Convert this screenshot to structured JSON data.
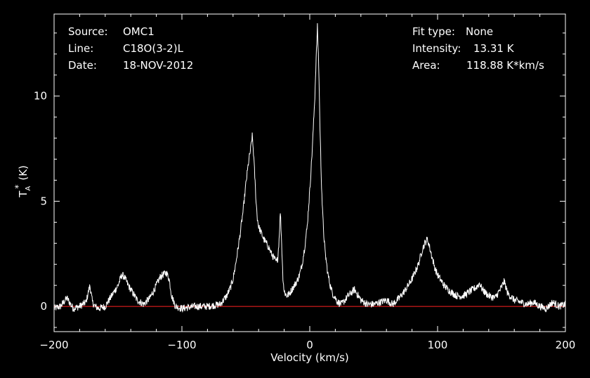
{
  "header": {
    "source_label": "Source:",
    "source_value": "OMC1",
    "line_label": "Line:",
    "line_value": "C18O(3-2)L",
    "date_label": "Date:",
    "date_value": "18-NOV-2012",
    "fit_label": "Fit type:",
    "fit_value": "None",
    "intensity_label": "Intensity:",
    "intensity_value": "13.31 K",
    "area_label": "Area:",
    "area_value": "118.88 K*km/s"
  },
  "chart_data": {
    "type": "line",
    "xlabel": "Velocity (km/s)",
    "ylabel_main": "T",
    "ylabel_sub": "A",
    "ylabel_sup": "*",
    "ylabel_unit": "(K)",
    "xlim": [
      -200,
      200
    ],
    "ylim": [
      -1.2,
      13.9
    ],
    "x_ticks": [
      -200,
      -100,
      0,
      100,
      200
    ],
    "x_tick_labels": [
      "−200",
      "−100",
      "0",
      "100",
      "200"
    ],
    "y_ticks": [
      0,
      5,
      10
    ],
    "y_tick_labels": [
      "0",
      "5",
      "10"
    ],
    "baseline": 0,
    "series": [
      {
        "color": "#ffffff",
        "x": [
          -200,
          -195,
          -190,
          -185,
          -180,
          -175,
          -172,
          -170,
          -168,
          -165,
          -160,
          -155,
          -150,
          -147,
          -145,
          -142,
          -138,
          -135,
          -130,
          -125,
          -120,
          -117,
          -115,
          -112,
          -110,
          -108,
          -105,
          -100,
          -90,
          -80,
          -70,
          -65,
          -62,
          -60,
          -58,
          -55,
          -52,
          -50,
          -48,
          -46,
          -45,
          -44,
          -43,
          -42,
          -41,
          -40,
          -38,
          -36,
          -34,
          -32,
          -30,
          -28,
          -26,
          -25,
          -24,
          -23,
          -22,
          -21,
          -20,
          -18,
          -16,
          -14,
          -12,
          -10,
          -8,
          -6,
          -4,
          -2,
          0,
          2,
          4,
          5,
          6,
          7,
          8,
          9,
          10,
          11,
          12,
          14,
          16,
          18,
          20,
          22,
          25,
          30,
          35,
          40,
          45,
          50,
          55,
          60,
          65,
          70,
          75,
          80,
          85,
          88,
          90,
          92,
          93,
          95,
          98,
          100,
          105,
          110,
          115,
          120,
          125,
          130,
          133,
          135,
          140,
          145,
          150,
          152,
          155,
          160,
          165,
          170,
          175,
          180,
          185,
          190,
          195,
          200
        ],
        "y": [
          -0.1,
          0,
          0.4,
          -0.1,
          0,
          0.2,
          1,
          0.2,
          0,
          -0.1,
          0,
          0.5,
          1,
          1.5,
          1.4,
          1,
          0.6,
          0.3,
          0.1,
          0.4,
          1,
          1.4,
          1.5,
          1.6,
          1.3,
          0.5,
          0,
          -0.1,
          0,
          0,
          0.1,
          0.5,
          0.9,
          1.3,
          2,
          3.2,
          4.6,
          5.8,
          6.8,
          7.6,
          8.1,
          7.3,
          6.2,
          5,
          4.2,
          3.8,
          3.5,
          3.2,
          3,
          2.8,
          2.5,
          2.3,
          2.1,
          2.3,
          3.2,
          4.5,
          3,
          1.4,
          0.7,
          0.5,
          0.6,
          0.8,
          1,
          1.2,
          1.5,
          2,
          2.8,
          3.8,
          5.5,
          7.5,
          10,
          11.8,
          13.3,
          11.5,
          8.5,
          6.2,
          4.5,
          3.4,
          2.6,
          1.6,
          1,
          0.6,
          0.4,
          0.2,
          0.1,
          0.5,
          0.8,
          0.3,
          0.1,
          0.1,
          0.2,
          0.3,
          0.1,
          0.4,
          0.8,
          1.3,
          2,
          2.7,
          3,
          3.2,
          3,
          2.5,
          1.8,
          1.5,
          1,
          0.7,
          0.5,
          0.5,
          0.7,
          0.9,
          1.1,
          0.8,
          0.5,
          0.4,
          0.9,
          1.2,
          0.6,
          0.3,
          0.2,
          0.1,
          0.2,
          0,
          -0.1,
          0.2,
          0,
          0.1
        ]
      },
      {
        "color": "#ff2020",
        "x": [
          -200,
          200
        ],
        "y": [
          0,
          0
        ]
      }
    ]
  }
}
